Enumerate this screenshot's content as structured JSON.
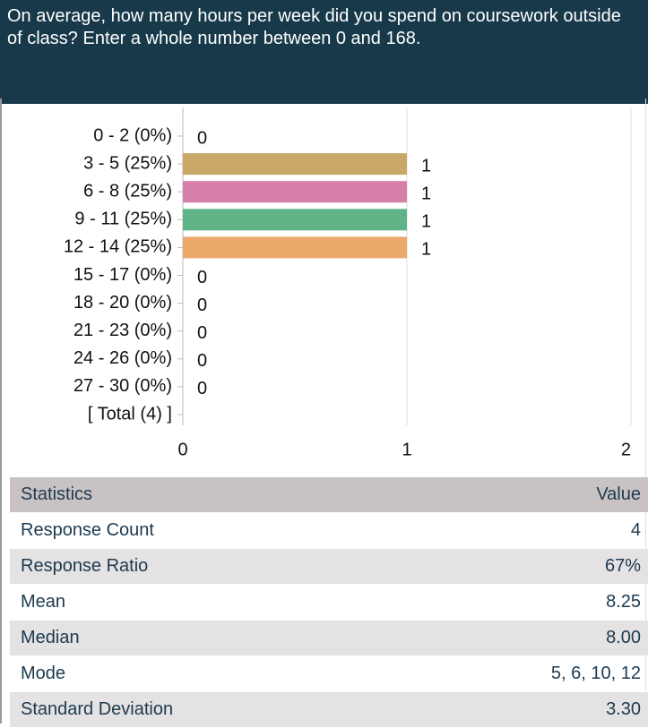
{
  "chart_data": {
    "type": "bar",
    "orientation": "horizontal",
    "title": "On average, how many hours per week did you spend on coursework outside of class? Enter a whole number between 0 and 168.",
    "categories": [
      "0 - 2 (0%)",
      "3 - 5 (25%)",
      "6 - 8 (25%)",
      "9 - 11 (25%)",
      "12 - 14 (25%)",
      "15 - 17 (0%)",
      "18 - 20 (0%)",
      "21 - 23 (0%)",
      "24 - 26 (0%)",
      "27 - 30 (0%)",
      "[ Total (4) ]"
    ],
    "values": [
      0,
      1,
      1,
      1,
      1,
      0,
      0,
      0,
      0,
      0,
      null
    ],
    "colors": [
      null,
      "#c9a766",
      "#d77fab",
      "#5fb386",
      "#eba86b",
      null,
      null,
      null,
      null,
      null,
      null
    ],
    "xlim": [
      0,
      2
    ],
    "xticks": [
      0,
      1,
      2
    ],
    "grid": true
  },
  "statistics": {
    "header": [
      "Statistics",
      "Value"
    ],
    "rows": [
      [
        "Response Count",
        "4"
      ],
      [
        "Response Ratio",
        "67%"
      ],
      [
        "Mean",
        "8.25"
      ],
      [
        "Median",
        "8.00"
      ],
      [
        "Mode",
        "5, 6, 10, 12"
      ],
      [
        "Standard Deviation",
        "3.30"
      ]
    ]
  }
}
